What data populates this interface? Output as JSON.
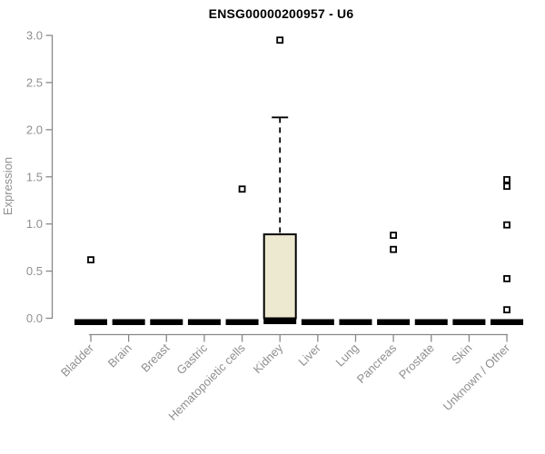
{
  "chart_data": {
    "type": "boxplot",
    "title": "ENSG00000200957 - U6",
    "ylabel": "Expression",
    "xlabel": "",
    "ylim": [
      0.0,
      3.0
    ],
    "yticks": [
      "0.0",
      "0.5",
      "1.0",
      "1.5",
      "2.0",
      "2.5",
      "3.0"
    ],
    "grid": false,
    "legend": null,
    "categories": [
      "Bladder",
      "Brain",
      "Breast",
      "Gastric",
      "Hematopoietic cells",
      "Kidney",
      "Liver",
      "Lung",
      "Pancreas",
      "Prostate",
      "Skin",
      "Unknown / Other"
    ],
    "boxes": [
      {
        "category": "Bladder",
        "whisker_low": 0.0,
        "q1": 0.0,
        "median": 0.0,
        "q3": 0.0,
        "whisker_high": 0.0,
        "outliers": [
          0.62
        ]
      },
      {
        "category": "Brain",
        "whisker_low": 0.0,
        "q1": 0.0,
        "median": 0.0,
        "q3": 0.0,
        "whisker_high": 0.0,
        "outliers": []
      },
      {
        "category": "Breast",
        "whisker_low": 0.0,
        "q1": 0.0,
        "median": 0.0,
        "q3": 0.0,
        "whisker_high": 0.0,
        "outliers": []
      },
      {
        "category": "Gastric",
        "whisker_low": 0.0,
        "q1": 0.0,
        "median": 0.0,
        "q3": 0.0,
        "whisker_high": 0.0,
        "outliers": []
      },
      {
        "category": "Hematopoietic cells",
        "whisker_low": 0.0,
        "q1": 0.0,
        "median": 0.0,
        "q3": 0.0,
        "whisker_high": 0.0,
        "outliers": [
          1.37
        ]
      },
      {
        "category": "Kidney",
        "whisker_low": 0.0,
        "q1": 0.0,
        "median": 0.01,
        "q3": 0.89,
        "whisker_high": 2.13,
        "outliers": [
          2.95
        ]
      },
      {
        "category": "Liver",
        "whisker_low": 0.0,
        "q1": 0.0,
        "median": 0.0,
        "q3": 0.0,
        "whisker_high": 0.0,
        "outliers": []
      },
      {
        "category": "Lung",
        "whisker_low": 0.0,
        "q1": 0.0,
        "median": 0.0,
        "q3": 0.0,
        "whisker_high": 0.0,
        "outliers": []
      },
      {
        "category": "Pancreas",
        "whisker_low": 0.0,
        "q1": 0.0,
        "median": 0.0,
        "q3": 0.0,
        "whisker_high": 0.0,
        "outliers": [
          0.88,
          0.73
        ]
      },
      {
        "category": "Prostate",
        "whisker_low": 0.0,
        "q1": 0.0,
        "median": 0.0,
        "q3": 0.0,
        "whisker_high": 0.0,
        "outliers": []
      },
      {
        "category": "Skin",
        "whisker_low": 0.0,
        "q1": 0.0,
        "median": 0.0,
        "q3": 0.0,
        "whisker_high": 0.0,
        "outliers": []
      },
      {
        "category": "Unknown / Other",
        "whisker_low": 0.0,
        "q1": 0.0,
        "median": 0.0,
        "q3": 0.0,
        "whisker_high": 0.0,
        "outliers": [
          1.47,
          1.4,
          0.99,
          0.42,
          0.09
        ]
      }
    ],
    "colors": {
      "box_fill": "#EDE8D0",
      "box_border": "#000000",
      "median": "#000000",
      "outlier_stroke": "#000000",
      "outlier_fill": "#ffffff",
      "axis_line": "#888888",
      "tick_label": "#8f8f8f",
      "title": "#000000"
    }
  }
}
